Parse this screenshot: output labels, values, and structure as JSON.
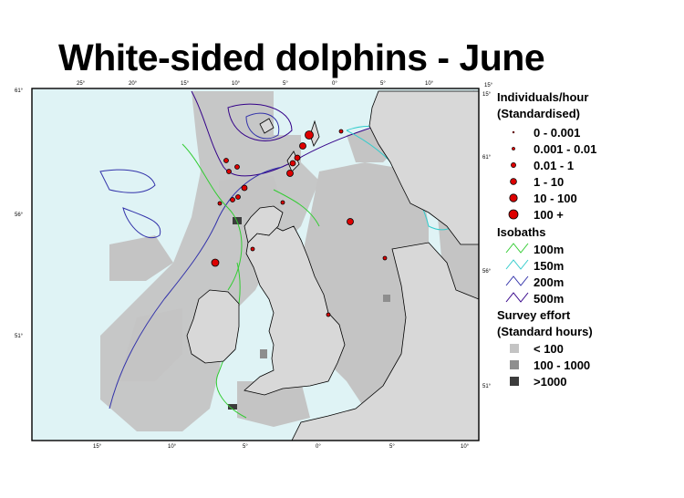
{
  "title": "White-sided dolphins - June",
  "map": {
    "top_lon_ticks": [
      "25°",
      "20°",
      "15°",
      "10°",
      "5°",
      "0°",
      "5°",
      "10°",
      "15°"
    ],
    "bottom_lon_ticks": [
      "15°",
      "10°",
      "5°",
      "0°",
      "5°",
      "10°"
    ],
    "left_lat_ticks": [
      "61°",
      "56°",
      "51°"
    ],
    "right_lat_ticks": [
      "15°",
      "61°",
      "56°",
      "51°"
    ],
    "colors": {
      "sea": "#dff3f5",
      "land": "#d8d8d8",
      "effort_low": "#c4c4c4",
      "effort_mid": "#8e8e8e",
      "effort_high": "#3c3c3c",
      "isobath_100": "#33cc33",
      "isobath_150": "#33cccc",
      "isobath_200": "#3333aa",
      "isobath_500": "#330088",
      "sighting": "#dd0000"
    }
  },
  "legend": {
    "sightings_title_1": "Individuals/hour",
    "sightings_title_2": "(Standardised)",
    "sightings": [
      "0 - 0.001",
      "0.001 - 0.01",
      "0.01 - 1",
      "1 - 10",
      "10 - 100",
      "100 +"
    ],
    "isobaths_title": "Isobaths",
    "isobaths": [
      "100m",
      "150m",
      "200m",
      "500m"
    ],
    "effort_title_1": "Survey effort",
    "effort_title_2": "(Standard hours)",
    "effort": [
      "< 100",
      "100 - 1000",
      ">1000"
    ]
  }
}
